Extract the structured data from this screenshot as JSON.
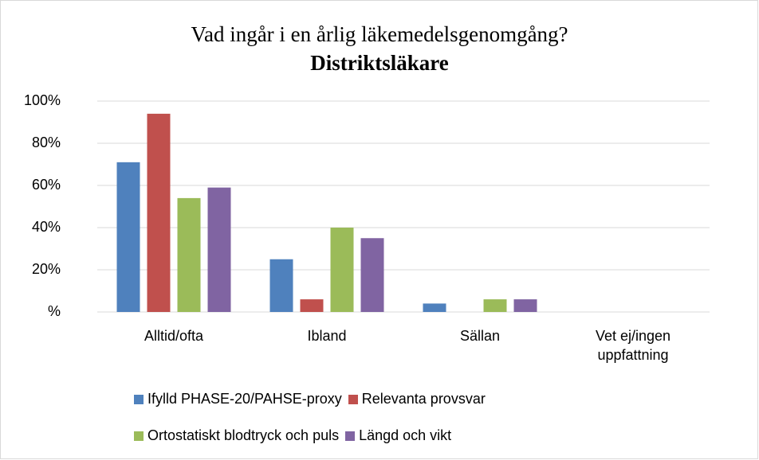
{
  "chart_data": {
    "type": "bar",
    "title": "Vad ingår i en årlig läkemedelsgenomgång?",
    "subtitle": "Distriktsläkare",
    "categories": [
      "Alltid/ofta",
      "Ibland",
      "Sällan",
      "Vet ej/ingen uppfattning"
    ],
    "series": [
      {
        "name": "Ifylld PHASE-20/PAHSE-proxy",
        "color": "#4f81bd",
        "values": [
          71,
          25,
          4,
          0
        ]
      },
      {
        "name": "Relevanta provsvar",
        "color": "#c0504d",
        "values": [
          94,
          6,
          0,
          0
        ]
      },
      {
        "name": "Ortostatiskt blodtryck och puls",
        "color": "#9bbb59",
        "values": [
          54,
          40,
          6,
          0
        ]
      },
      {
        "name": "Längd och vikt",
        "color": "#8064a2",
        "values": [
          59,
          35,
          6,
          0
        ]
      }
    ],
    "ylim": [
      0,
      100
    ],
    "yticks": [
      {
        "value": 0,
        "label": "%"
      },
      {
        "value": 20,
        "label": "20%"
      },
      {
        "value": 40,
        "label": "40%"
      },
      {
        "value": 60,
        "label": "60%"
      },
      {
        "value": 80,
        "label": "80%"
      },
      {
        "value": 100,
        "label": "100%"
      }
    ],
    "grid": true,
    "legend": "bottom"
  }
}
